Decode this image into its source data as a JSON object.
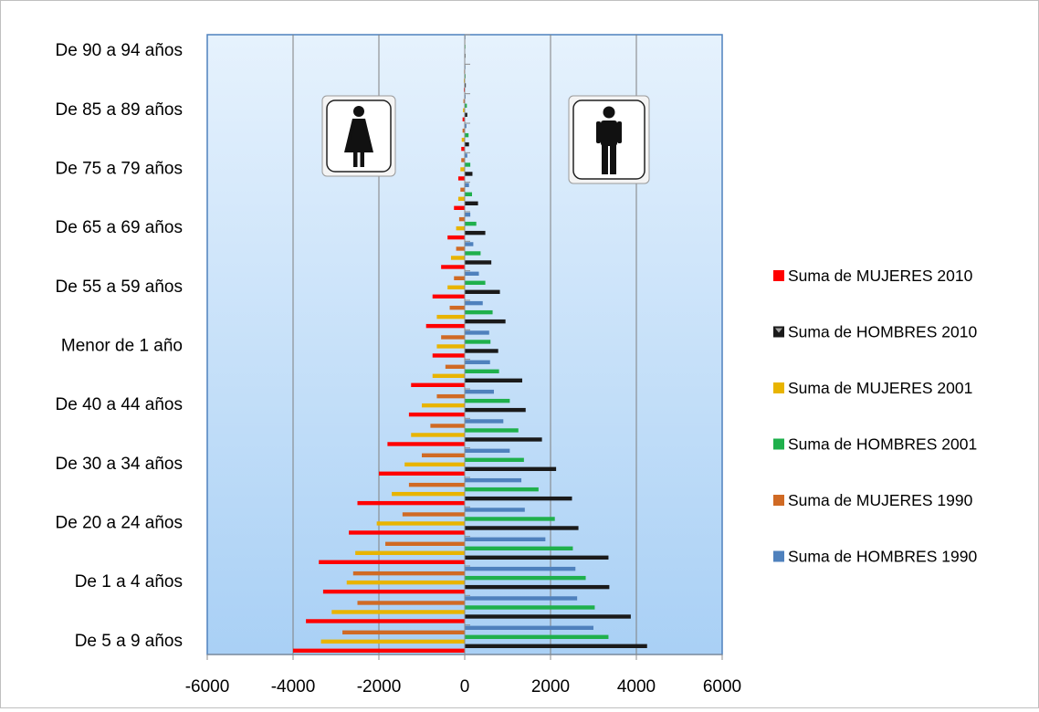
{
  "chart_data": {
    "type": "bar",
    "orientation": "horizontal",
    "xlim": [
      -6000,
      6000
    ],
    "x_ticks": [
      -6000,
      -4000,
      -2000,
      0,
      2000,
      4000,
      6000
    ],
    "grid": "vertical",
    "legend_position": "right",
    "categories": [
      "De 5 a 9 años",
      "",
      "De 1 a 4 años",
      "",
      "De 20 a 24 años",
      "",
      "De 30 a 34 años",
      "",
      "De 40 a 44 años",
      "",
      "Menor de 1 año",
      "",
      "De 55 a 59 años",
      "",
      "De 65 a 69 años",
      "",
      "De 75 a 79 años",
      "",
      "De 85 a 89 años",
      "",
      "De 90 a 94 años"
    ],
    "series": [
      {
        "name": "Suma de  MUJERES 2010",
        "color": "#ff0000",
        "values": [
          -4000,
          -3700,
          -3300,
          -3400,
          -2700,
          -2500,
          -2000,
          -1800,
          -1300,
          -1250,
          -750,
          -900,
          -750,
          -550,
          -400,
          -250,
          -150,
          -80,
          -50,
          -20,
          -10
        ]
      },
      {
        "name": "Suma de HOMBRES 2010",
        "color": "#1a1a1a",
        "values": [
          4250,
          3870,
          3370,
          3350,
          2650,
          2500,
          2130,
          1800,
          1420,
          1340,
          780,
          950,
          820,
          620,
          480,
          310,
          180,
          100,
          60,
          25,
          10
        ]
      },
      {
        "name": "Suma de  MUJERES 2001",
        "color": "#e8b400",
        "values": [
          -3350,
          -3100,
          -2750,
          -2550,
          -2050,
          -1700,
          -1400,
          -1250,
          -1000,
          -750,
          -650,
          -650,
          -400,
          -320,
          -200,
          -150,
          -100,
          -70,
          -40,
          -20,
          -10
        ]
      },
      {
        "name": "Suma de HOMBRES 2001",
        "color": "#1fb04c",
        "values": [
          3350,
          3030,
          2820,
          2520,
          2100,
          1720,
          1380,
          1250,
          1050,
          800,
          600,
          650,
          480,
          370,
          270,
          170,
          130,
          90,
          50,
          20,
          10
        ]
      },
      {
        "name": "Suma de  MUJERES 1990",
        "color": "#d06a24",
        "values": [
          -2850,
          -2500,
          -2600,
          -1850,
          -1450,
          -1300,
          -1000,
          -800,
          -650,
          -450,
          -550,
          -350,
          -250,
          -200,
          -130,
          -100,
          -80,
          -50,
          -30,
          -15,
          -5
        ]
      },
      {
        "name": "Suma de HOMBRES 1990",
        "color": "#4f81bd",
        "values": [
          3000,
          2620,
          2580,
          1880,
          1400,
          1320,
          1050,
          900,
          680,
          590,
          570,
          420,
          330,
          200,
          130,
          100,
          60,
          40,
          20,
          10,
          5
        ]
      }
    ]
  },
  "icons": {
    "female": "female-restroom-icon",
    "male": "male-restroom-icon"
  }
}
